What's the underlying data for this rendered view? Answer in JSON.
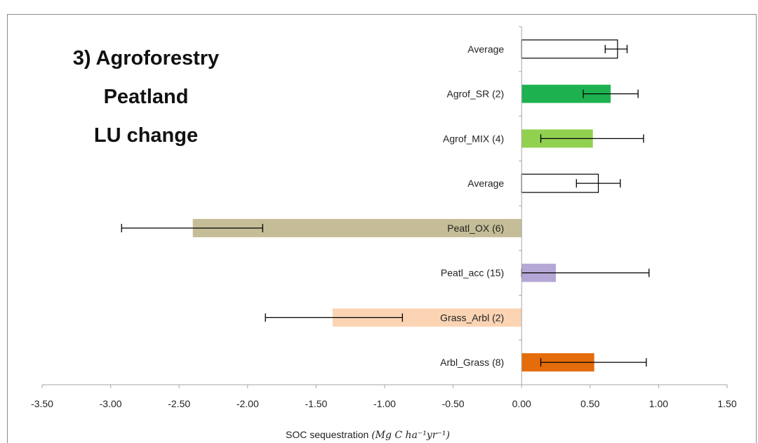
{
  "chart_data": {
    "type": "bar",
    "orientation": "horizontal",
    "title_lines": [
      "3) Agroforestry",
      "Peatland",
      "LU change"
    ],
    "xlabel": "SOC sequestration",
    "xlabel_units": "(Mg C ha⁻¹yr⁻¹)",
    "xlim": [
      -3.5,
      1.5
    ],
    "xticks": [
      -3.5,
      -3.0,
      -2.5,
      -2.0,
      -1.5,
      -1.0,
      -0.5,
      0.0,
      0.5,
      1.0,
      1.5
    ],
    "xtick_labels": [
      "-3.50",
      "-3.00",
      "-2.50",
      "-2.00",
      "-1.50",
      "-1.00",
      "-0.50",
      "0.00",
      "0.50",
      "1.00",
      "1.50"
    ],
    "grid": false,
    "categories": [
      "Average",
      "Agrof_SR (2)",
      "Agrof_MIX (4)",
      "Average",
      "Peatl_OX (6)",
      "Peatl_acc (15)",
      "Grass_Arbl (2)",
      "Arbl_Grass (8)"
    ],
    "values": [
      0.7,
      0.65,
      0.52,
      0.56,
      -2.4,
      0.25,
      -1.38,
      0.53
    ],
    "error_low": [
      0.61,
      0.45,
      0.14,
      0.4,
      -2.92,
      0.0,
      -1.87,
      0.14
    ],
    "error_high": [
      0.77,
      0.85,
      0.89,
      0.72,
      -1.89,
      0.93,
      -0.87,
      0.91
    ],
    "colors": [
      "#ffffff",
      "#1db24f",
      "#92d050",
      "#ffffff",
      "#c4bd97",
      "#b4a7d6",
      "#fbd4b4",
      "#e46c0a"
    ],
    "outlined": [
      true,
      false,
      false,
      true,
      false,
      false,
      false,
      false
    ]
  }
}
